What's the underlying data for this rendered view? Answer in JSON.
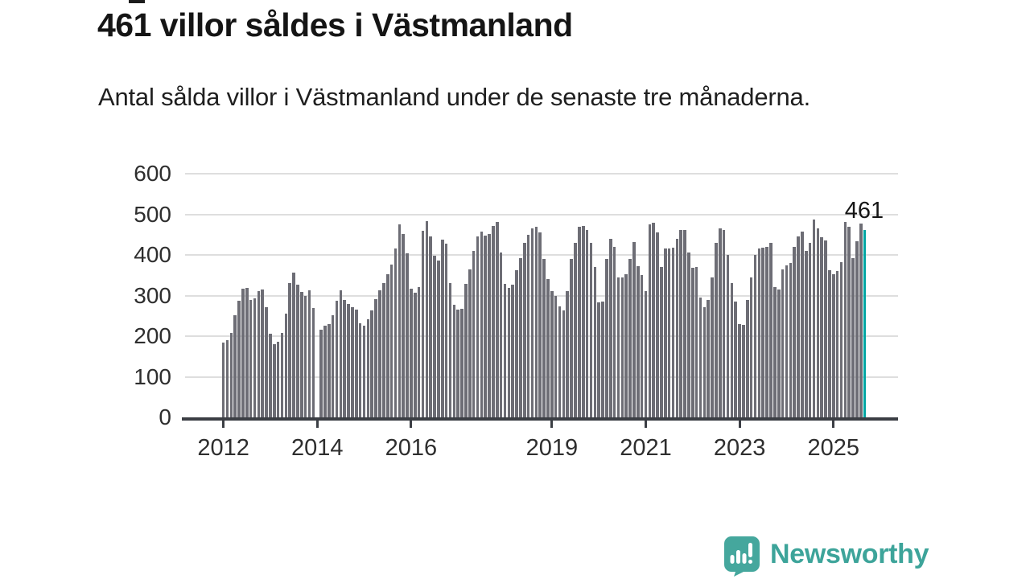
{
  "chart_data": {
    "type": "bar",
    "title": "461 villor såldes i Västmanland",
    "subtitle": "Antal sålda villor i Västmanland under de senaste tre månaderna.",
    "x_start": "2012-01",
    "x_end": "2025-09",
    "x_unit": "month",
    "x_tick_years": [
      2012,
      2014,
      2016,
      2019,
      2021,
      2023,
      2025
    ],
    "x_tick_labels": [
      "2012",
      "2014",
      "2016",
      "2019",
      "2021",
      "2023",
      "2025"
    ],
    "y_ticks": [
      0,
      100,
      200,
      300,
      400,
      500,
      600
    ],
    "ylim": [
      0,
      600
    ],
    "grid": "horizontal",
    "legend": "none",
    "bar_color": "#6d6d75",
    "highlight": {
      "month": "2025-09",
      "index": 164,
      "value": 461,
      "label": "461",
      "color": "#00a5a2"
    },
    "values": [
      185,
      190,
      208,
      252,
      288,
      316,
      318,
      290,
      294,
      310,
      314,
      271,
      205,
      180,
      186,
      208,
      256,
      330,
      357,
      326,
      309,
      299,
      312,
      270,
      null,
      216,
      226,
      229,
      252,
      287,
      312,
      289,
      280,
      272,
      266,
      231,
      226,
      241,
      263,
      291,
      312,
      331,
      353,
      377,
      416,
      476,
      452,
      403,
      317,
      307,
      320,
      459,
      484,
      446,
      398,
      387,
      438,
      428,
      331,
      278,
      265,
      268,
      328,
      365,
      409,
      445,
      458,
      448,
      452,
      471,
      481,
      405,
      328,
      318,
      327,
      362,
      392,
      430,
      450,
      465,
      470,
      455,
      390,
      340,
      310,
      300,
      273,
      263,
      310,
      390,
      430,
      470,
      472,
      461,
      430,
      370,
      283,
      285,
      390,
      440,
      420,
      345,
      345,
      352,
      390,
      432,
      372,
      350,
      310,
      475,
      480,
      455,
      370,
      415,
      415,
      418,
      440,
      462,
      462,
      405,
      368,
      370,
      295,
      272,
      290,
      345,
      430,
      465,
      462,
      400,
      330,
      285,
      230,
      228,
      290,
      345,
      400,
      415,
      418,
      420,
      430,
      320,
      315,
      365,
      375,
      380,
      420,
      445,
      458,
      409,
      430,
      488,
      465,
      443,
      435,
      363,
      352,
      360,
      382,
      481,
      470,
      392,
      433,
      478,
      461
    ]
  },
  "branding": {
    "name": "Newsworthy",
    "icon": "speech-bubble-bar-chart-icon",
    "color": "#3da49a"
  }
}
